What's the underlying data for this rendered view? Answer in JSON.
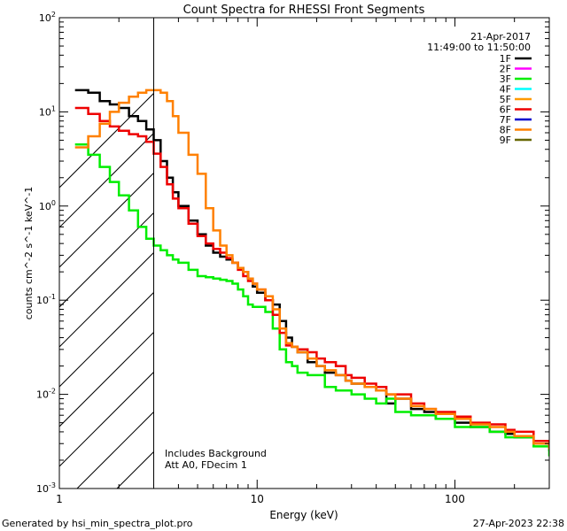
{
  "chart_data": {
    "type": "line",
    "title": "Count Spectra for RHESSI Front Segments",
    "xlabel": "Energy (keV)",
    "ylabel": "counts cm^-2 s^-1 keV^-1",
    "xscale": "log",
    "yscale": "log",
    "xlim": [
      1,
      300
    ],
    "ylim": [
      0.001,
      100
    ],
    "x_ticks": [
      {
        "value": 1,
        "label": "1"
      },
      {
        "value": 10,
        "label": "10"
      },
      {
        "value": 100,
        "label": "100"
      }
    ],
    "y_ticks": [
      {
        "value": 0.001,
        "base": "10",
        "exp": "-3"
      },
      {
        "value": 0.01,
        "base": "10",
        "exp": "-2"
      },
      {
        "value": 0.1,
        "base": "10",
        "exp": "-1"
      },
      {
        "value": 1,
        "base": "10",
        "exp": "0"
      },
      {
        "value": 10,
        "base": "10",
        "exp": "1"
      },
      {
        "value": 100,
        "base": "10",
        "exp": "2"
      }
    ],
    "date": "21-Apr-2017",
    "time_range": "11:49:00 to 11:50:00",
    "hatched_region_max_kev": 3,
    "annotations": [
      "Includes Background",
      "Att A0, FDecim 1"
    ],
    "footer_left": "Generated by hsi_min_spectra_plot.pro",
    "footer_right": "27-Apr-2023 22:38",
    "legend": [
      {
        "name": "1F",
        "color": "#000000"
      },
      {
        "name": "2F",
        "color": "#ff00ff"
      },
      {
        "name": "3F",
        "color": "#00ee00"
      },
      {
        "name": "4F",
        "color": "#00ffff"
      },
      {
        "name": "5F",
        "color": "#ff9900"
      },
      {
        "name": "6F",
        "color": "#ee0000"
      },
      {
        "name": "7F",
        "color": "#0000cc"
      },
      {
        "name": "8F",
        "color": "#ff8000"
      },
      {
        "name": "9F",
        "color": "#666600"
      }
    ],
    "series": [
      {
        "name": "1F",
        "color": "#000000",
        "x": [
          1.2,
          1.4,
          1.6,
          1.8,
          2.0,
          2.25,
          2.5,
          2.75,
          3.0,
          3.25,
          3.5,
          3.75,
          4.0,
          4.5,
          5.0,
          5.5,
          6.0,
          6.5,
          7.0,
          7.5,
          8.0,
          8.5,
          9.0,
          9.5,
          10.0,
          11.0,
          12.0,
          13.0,
          14.0,
          15.0,
          16.0,
          18.0,
          20.0,
          22.0,
          25.0,
          28.0,
          30.0,
          35.0,
          40.0,
          45.0,
          50.0,
          60.0,
          70.0,
          80.0,
          100.0,
          120.0,
          150.0,
          180.0,
          200.0,
          250.0,
          300.0
        ],
        "y": [
          17,
          16,
          13,
          12,
          11,
          9,
          8,
          6.5,
          5,
          3.0,
          2.0,
          1.4,
          1.0,
          0.7,
          0.5,
          0.38,
          0.32,
          0.29,
          0.27,
          0.25,
          0.22,
          0.2,
          0.17,
          0.14,
          0.12,
          0.1,
          0.09,
          0.06,
          0.04,
          0.032,
          0.028,
          0.022,
          0.02,
          0.017,
          0.016,
          0.014,
          0.013,
          0.012,
          0.011,
          0.008,
          0.009,
          0.007,
          0.0065,
          0.0055,
          0.005,
          0.0045,
          0.004,
          0.0038,
          0.0035,
          0.003,
          0.0025
        ]
      },
      {
        "name": "3F",
        "color": "#00ee00",
        "x": [
          1.2,
          1.4,
          1.6,
          1.8,
          2.0,
          2.25,
          2.5,
          2.75,
          3.0,
          3.25,
          3.5,
          3.75,
          4.0,
          4.5,
          5.0,
          5.5,
          6.0,
          6.5,
          7.0,
          7.5,
          8.0,
          8.5,
          9.0,
          9.5,
          10.0,
          11.0,
          12.0,
          13.0,
          14.0,
          15.0,
          16.0,
          18.0,
          20.0,
          22.0,
          25.0,
          28.0,
          30.0,
          35.0,
          40.0,
          45.0,
          50.0,
          60.0,
          70.0,
          80.0,
          100.0,
          120.0,
          150.0,
          180.0,
          200.0,
          250.0,
          300.0
        ],
        "y": [
          4.5,
          3.5,
          2.6,
          1.8,
          1.3,
          0.9,
          0.6,
          0.45,
          0.38,
          0.34,
          0.3,
          0.27,
          0.25,
          0.21,
          0.18,
          0.175,
          0.17,
          0.165,
          0.16,
          0.15,
          0.13,
          0.11,
          0.09,
          0.085,
          0.085,
          0.075,
          0.05,
          0.03,
          0.022,
          0.02,
          0.017,
          0.016,
          0.016,
          0.012,
          0.011,
          0.011,
          0.01,
          0.009,
          0.008,
          0.009,
          0.0065,
          0.006,
          0.006,
          0.0055,
          0.0045,
          0.0045,
          0.004,
          0.0035,
          0.0035,
          0.0028,
          0.0022
        ]
      },
      {
        "name": "6F",
        "color": "#ee0000",
        "x": [
          1.2,
          1.4,
          1.6,
          1.8,
          2.0,
          2.25,
          2.5,
          2.75,
          3.0,
          3.25,
          3.5,
          3.75,
          4.0,
          4.5,
          5.0,
          5.5,
          6.0,
          6.5,
          7.0,
          7.5,
          8.0,
          8.5,
          9.0,
          9.5,
          10.0,
          11.0,
          12.0,
          13.0,
          14.0,
          15.0,
          16.0,
          18.0,
          20.0,
          22.0,
          25.0,
          28.0,
          30.0,
          35.0,
          40.0,
          45.0,
          50.0,
          60.0,
          70.0,
          80.0,
          100.0,
          120.0,
          150.0,
          180.0,
          200.0,
          250.0,
          300.0
        ],
        "y": [
          11,
          9.5,
          8,
          7,
          6.3,
          5.8,
          5.5,
          4.8,
          3.6,
          2.6,
          1.7,
          1.2,
          0.95,
          0.65,
          0.48,
          0.4,
          0.35,
          0.32,
          0.28,
          0.25,
          0.21,
          0.18,
          0.16,
          0.15,
          0.13,
          0.1,
          0.07,
          0.045,
          0.033,
          0.032,
          0.03,
          0.028,
          0.024,
          0.022,
          0.02,
          0.016,
          0.015,
          0.013,
          0.012,
          0.01,
          0.01,
          0.008,
          0.007,
          0.0065,
          0.0058,
          0.005,
          0.0048,
          0.0042,
          0.004,
          0.0032,
          0.0028
        ]
      },
      {
        "name": "8F",
        "color": "#ff8000",
        "x": [
          1.2,
          1.4,
          1.6,
          1.8,
          2.0,
          2.25,
          2.5,
          2.75,
          3.0,
          3.25,
          3.5,
          3.75,
          4.0,
          4.5,
          5.0,
          5.5,
          6.0,
          6.5,
          7.0,
          7.5,
          8.0,
          8.5,
          9.0,
          9.5,
          10.0,
          11.0,
          12.0,
          13.0,
          14.0,
          15.0,
          16.0,
          18.0,
          20.0,
          22.0,
          25.0,
          28.0,
          30.0,
          35.0,
          40.0,
          45.0,
          50.0,
          60.0,
          70.0,
          80.0,
          100.0,
          120.0,
          150.0,
          180.0,
          200.0,
          250.0,
          300.0
        ],
        "y": [
          4.2,
          5.5,
          7.5,
          10,
          12.5,
          14.5,
          16,
          17,
          17,
          16,
          13,
          9,
          6,
          3.5,
          2.2,
          0.95,
          0.55,
          0.38,
          0.3,
          0.25,
          0.22,
          0.2,
          0.17,
          0.15,
          0.13,
          0.11,
          0.08,
          0.05,
          0.035,
          0.032,
          0.028,
          0.024,
          0.02,
          0.018,
          0.016,
          0.014,
          0.013,
          0.012,
          0.011,
          0.01,
          0.009,
          0.0075,
          0.007,
          0.0062,
          0.0055,
          0.0048,
          0.0045,
          0.004,
          0.0036,
          0.003,
          0.0026
        ]
      }
    ]
  }
}
